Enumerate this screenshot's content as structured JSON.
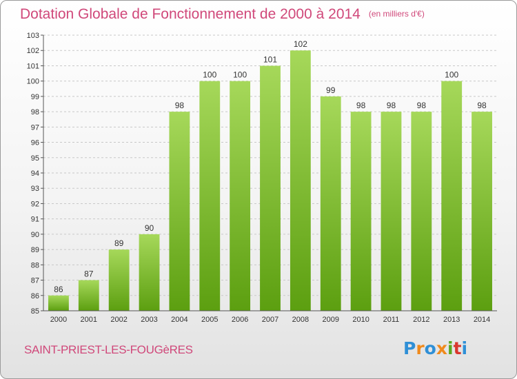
{
  "title": "Dotation Globale de Fonctionnement de 2000 à 2014",
  "unit_label": "(en milliers d'€)",
  "commune": "SAINT-PRIEST-LES-FOUGèRES",
  "logo_text": "Proxiti",
  "colors": {
    "title": "#d0487a",
    "bar_top": "#a6d85a",
    "bar_bottom": "#5c9f10",
    "logo": [
      "#2f8fd6",
      "#f08a1c",
      "#2f8fd6",
      "#f08a1c",
      "#5aa91f",
      "#d9372e",
      "#2f8fd6"
    ]
  },
  "chart_data": {
    "type": "bar",
    "categories": [
      "2000",
      "2001",
      "2002",
      "2003",
      "2004",
      "2005",
      "2006",
      "2007",
      "2008",
      "2009",
      "2010",
      "2011",
      "2012",
      "2013",
      "2014"
    ],
    "values": [
      86,
      87,
      89,
      90,
      98,
      100,
      100,
      101,
      102,
      99,
      98,
      98,
      98,
      100,
      98
    ],
    "ylim": [
      85,
      103
    ],
    "yticks": [
      85,
      86,
      87,
      88,
      89,
      90,
      91,
      92,
      93,
      94,
      95,
      96,
      97,
      98,
      99,
      100,
      101,
      102,
      103
    ],
    "grid": true
  }
}
